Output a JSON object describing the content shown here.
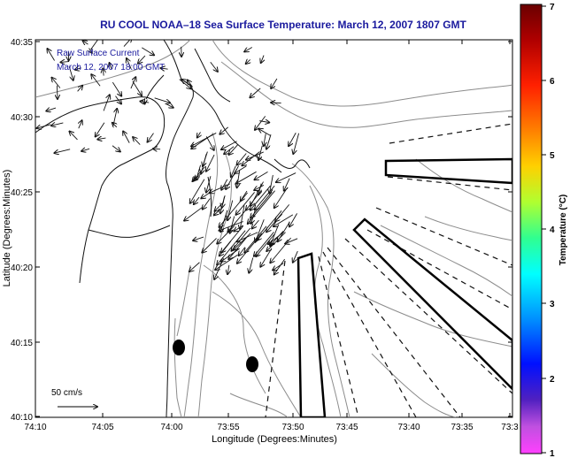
{
  "title": "RU COOL  NOAA–18  Sea Surface Temperature:  March 12, 2007 1807 GMT",
  "overlay": {
    "line1": "Raw Surface Current",
    "line2": "March 12, 2007 18:00 GMT"
  },
  "axes": {
    "xlabel": "Longitude (Degrees:Minutes)",
    "ylabel": "Latitude (Degrees:Minutes)",
    "xticks": [
      "74:10",
      "74:05",
      "74:00",
      "73:55",
      "73:50",
      "73:45",
      "73:40",
      "73:35",
      "73:3"
    ],
    "yticks": [
      "40:35",
      "40:30",
      "40:25",
      "40:20",
      "40:15",
      "40:10"
    ]
  },
  "scale": {
    "label": "50 cm/s"
  },
  "colorbar": {
    "label": "Temperature (°C)",
    "ticks": [
      "7",
      "6",
      "5",
      "4",
      "3",
      "2",
      "1"
    ]
  },
  "colors": {
    "title": "#1a1a9e",
    "overlay": "#1a1a9e",
    "contour": "#8c8c8c",
    "coast": "#111111"
  }
}
